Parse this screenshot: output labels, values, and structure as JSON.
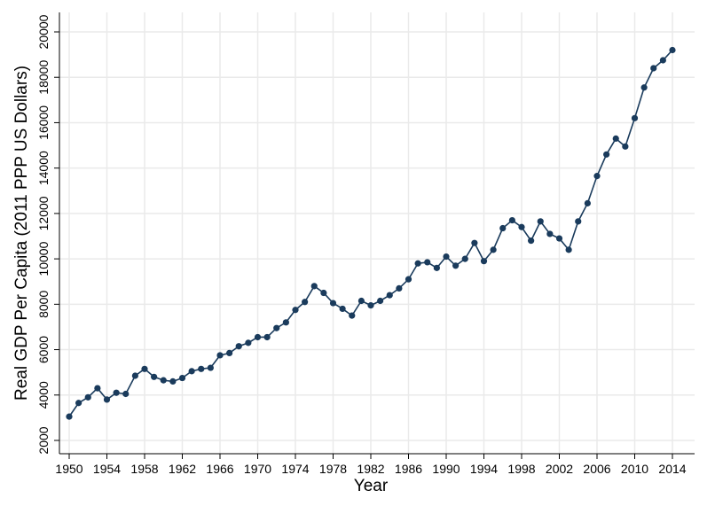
{
  "chart_data": {
    "type": "line",
    "xlabel": "Year",
    "ylabel": "Real GDP Per Capita (2011 PPP US Dollars)",
    "xlim": [
      1950,
      2014
    ],
    "ylim": [
      2000,
      20000
    ],
    "xticks": [
      1950,
      1954,
      1958,
      1962,
      1966,
      1970,
      1974,
      1978,
      1982,
      1986,
      1990,
      1994,
      1998,
      2002,
      2006,
      2010,
      2014
    ],
    "yticks": [
      2000,
      4000,
      6000,
      8000,
      10000,
      12000,
      14000,
      16000,
      18000,
      20000
    ],
    "grid": true,
    "colors": {
      "series": "#1a3b5c",
      "grid": "#eaeaea"
    },
    "series": [
      {
        "x": [
          1950,
          1951,
          1952,
          1953,
          1954,
          1955,
          1956,
          1957,
          1958,
          1959,
          1960,
          1961,
          1962,
          1963,
          1964,
          1965,
          1966,
          1967,
          1968,
          1969,
          1970,
          1971,
          1972,
          1973,
          1974,
          1975,
          1976,
          1977,
          1978,
          1979,
          1980,
          1981,
          1982,
          1983,
          1984,
          1985,
          1986,
          1987,
          1988,
          1989,
          1990,
          1991,
          1992,
          1993,
          1994,
          1995,
          1996,
          1997,
          1998,
          1999,
          2000,
          2001,
          2002,
          2003,
          2004,
          2005,
          2006,
          2007,
          2008,
          2009,
          2010,
          2011,
          2012,
          2013,
          2014
        ],
        "values": [
          3050,
          3650,
          3900,
          4300,
          3800,
          4100,
          4050,
          4850,
          5150,
          4800,
          4650,
          4600,
          4750,
          5050,
          5150,
          5200,
          5750,
          5850,
          6150,
          6300,
          6550,
          6550,
          6950,
          7200,
          7750,
          8100,
          8800,
          8500,
          8050,
          7800,
          7500,
          8150,
          7950,
          8150,
          8400,
          8700,
          9100,
          9800,
          9850,
          9600,
          10100,
          9700,
          10000,
          10700,
          9900,
          10400,
          11350,
          11700,
          11400,
          10800,
          11650,
          11100,
          10900,
          10400,
          11650,
          12450,
          13650,
          14600,
          15300,
          14950,
          16200,
          17550,
          18400,
          18750,
          19200
        ]
      }
    ]
  }
}
